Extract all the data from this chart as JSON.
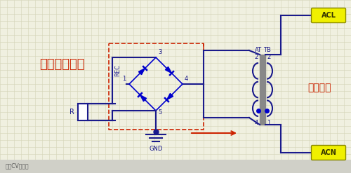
{
  "bg_color": "#f0f0e0",
  "grid_color": "#d5d5b8",
  "title_cn": "五半波整流桥",
  "title_en_right": "市电输入",
  "wire_color_main": "#1a1a8c",
  "wire_color_dashed": "#cc2200",
  "diode_color": "#0000cc",
  "text_color_red": "#cc2200",
  "label_bg": "#f0f000",
  "label_ac": "ACL",
  "label_acn": "ACN",
  "label_gnd": "GND",
  "label_rec": "REC",
  "label_r": "R",
  "label_tb": "TB",
  "label_at": "AT",
  "label_2": "2",
  "label_1": "1",
  "label_4": "4",
  "label_3": "3",
  "label_5": "5",
  "bottom_bar_color": "#d0d0c8",
  "bottom_text": "来：CV学视频"
}
